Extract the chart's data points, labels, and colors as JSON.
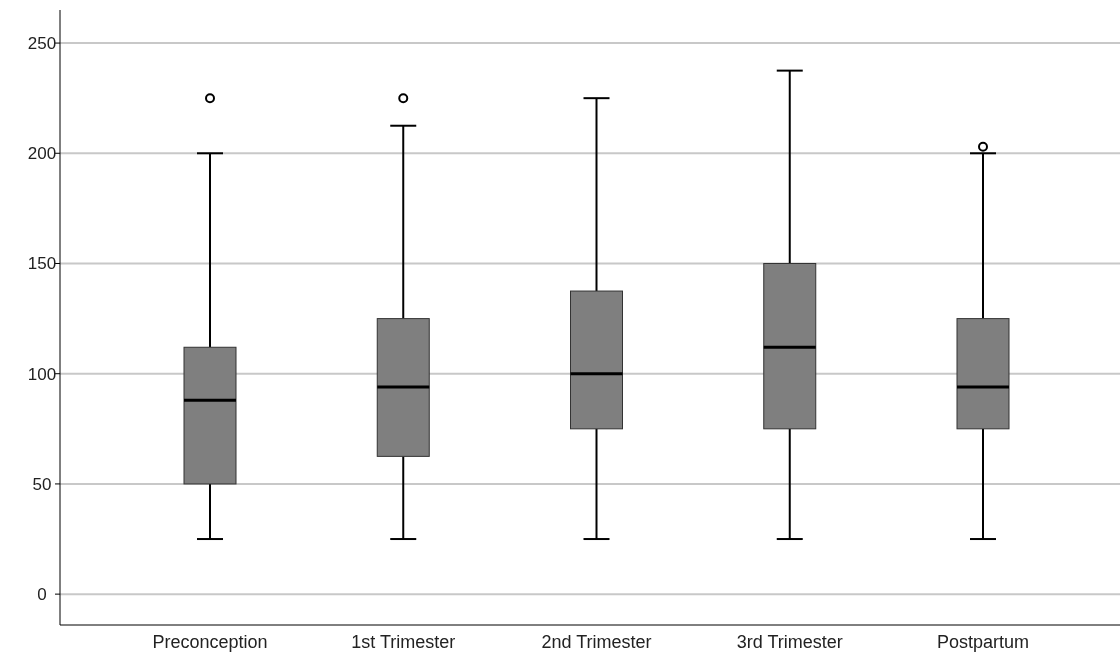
{
  "chart_data": {
    "type": "box",
    "categories": [
      "Preconception",
      "1st Trimester",
      "2nd Trimester",
      "3rd Trimester",
      "Postpartum"
    ],
    "boxes": [
      {
        "low": 25,
        "q1": 50,
        "median": 88,
        "q3": 112,
        "high": 200,
        "outliers": [
          225
        ]
      },
      {
        "low": 25,
        "q1": 62.5,
        "median": 94,
        "q3": 125,
        "high": 212.5,
        "outliers": [
          225
        ]
      },
      {
        "low": 25,
        "q1": 75,
        "median": 100,
        "q3": 137.5,
        "high": 225
      },
      {
        "low": 25,
        "q1": 75,
        "median": 112,
        "q3": 150,
        "high": 237.5
      },
      {
        "low": 25,
        "q1": 75,
        "median": 94,
        "q3": 125,
        "high": 200,
        "outliers": [
          203
        ]
      }
    ],
    "color": "#7f7f7f",
    "ylim": [
      -14,
      265
    ],
    "yticks": [
      0,
      50,
      100,
      150,
      200,
      250
    ],
    "grid": "y"
  }
}
